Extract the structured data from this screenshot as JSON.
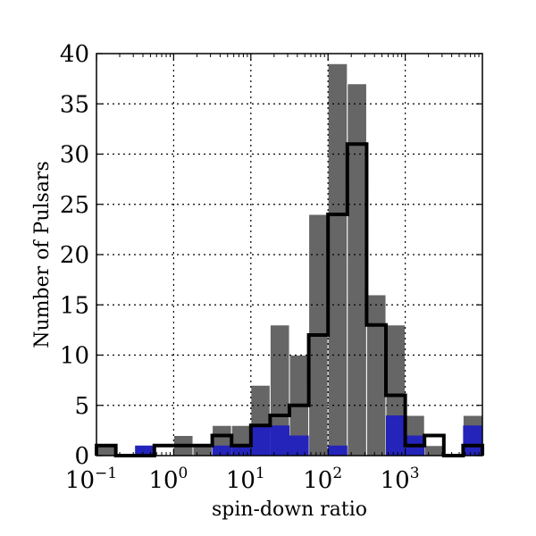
{
  "chart_data": {
    "type": "bar",
    "xlabel": "spin-down ratio",
    "ylabel": "Number of Pulsars",
    "xscale": "log",
    "xlim": [
      0.1,
      10000
    ],
    "ylim": [
      0,
      40
    ],
    "grid": true,
    "bin_edges": [
      0.1,
      0.178,
      0.316,
      0.562,
      1.0,
      1.778,
      3.162,
      5.623,
      10.0,
      17.78,
      31.62,
      56.23,
      100.0,
      177.8,
      316.2,
      562.3,
      1000.0,
      1778.0,
      3162.0,
      5623.0
    ],
    "series": [
      {
        "color": "#666666",
        "histtype": "filled",
        "values": [
          1,
          0,
          0,
          0,
          2,
          1,
          3,
          3,
          7,
          13,
          10,
          24,
          39,
          37,
          16,
          13,
          4,
          1,
          0,
          4
        ]
      },
      {
        "color": "#2424bb",
        "histtype": "filled",
        "values": [
          0,
          0,
          1,
          0,
          0,
          0,
          1,
          1,
          3,
          3,
          2,
          0,
          1,
          0,
          0,
          4,
          2,
          0,
          0,
          3
        ]
      },
      {
        "color": "#000000",
        "histtype": "step",
        "values": [
          1,
          0,
          0,
          1,
          1,
          1,
          2,
          1,
          3,
          4,
          5,
          12,
          24,
          31,
          13,
          6,
          1,
          2,
          0,
          1
        ]
      }
    ],
    "yticks": [
      0,
      5,
      10,
      15,
      20,
      25,
      30,
      35,
      40
    ],
    "xticks": [
      {
        "value": 0.1,
        "base": "10",
        "exp": "−1"
      },
      {
        "value": 1,
        "base": "10",
        "exp": "0"
      },
      {
        "value": 10,
        "base": "10",
        "exp": "1"
      },
      {
        "value": 100,
        "base": "10",
        "exp": "2"
      },
      {
        "value": 1000,
        "base": "10",
        "exp": "3"
      }
    ]
  }
}
